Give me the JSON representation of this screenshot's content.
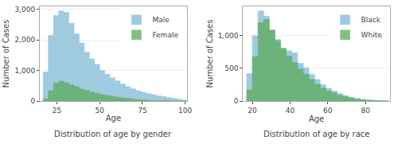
{
  "chart_data": [
    {
      "type": "histogram",
      "title": "Distribution of age by gender",
      "xlabel": "Age",
      "ylabel": "Number of Cases",
      "bins": [
        17,
        20,
        23,
        26,
        29,
        32,
        35,
        38,
        41,
        44,
        47,
        50,
        53,
        56,
        59,
        62,
        65,
        68,
        71,
        74,
        77,
        80,
        83,
        86,
        89,
        92,
        95,
        98,
        101
      ],
      "series": [
        {
          "name": "Male",
          "color": "#7fb9d5",
          "values": [
            950,
            2150,
            2800,
            2950,
            2900,
            2550,
            2200,
            1900,
            1600,
            1380,
            1200,
            1000,
            880,
            760,
            660,
            560,
            470,
            400,
            340,
            290,
            250,
            210,
            175,
            145,
            115,
            85,
            60,
            35
          ]
        },
        {
          "name": "Female",
          "color": "#5aaa5a",
          "values": [
            75,
            340,
            590,
            650,
            600,
            530,
            470,
            390,
            350,
            295,
            255,
            215,
            185,
            155,
            130,
            105,
            85,
            65,
            50,
            38,
            28,
            18,
            13,
            9,
            6,
            4,
            2,
            1
          ]
        }
      ],
      "xlim": [
        15,
        101
      ],
      "ylim": [
        0,
        3100
      ],
      "xticks": [
        25,
        50,
        75,
        100
      ],
      "yticks": [
        0,
        {
          "value": 1000,
          "label": "1,000"
        },
        {
          "value": 2000,
          "label": "2,000"
        },
        {
          "value": 3000,
          "label": "3,000"
        }
      ],
      "grid": true,
      "legend": "upper right"
    },
    {
      "type": "histogram",
      "title": "Distribution of age by race",
      "xlabel": "Age",
      "ylabel": "Number of Cases",
      "bins": [
        17,
        20,
        23,
        26,
        29,
        32,
        35,
        38,
        41,
        44,
        47,
        50,
        53,
        56,
        59,
        62,
        65,
        68,
        71,
        74,
        77,
        80,
        83,
        86,
        89,
        92
      ],
      "series": [
        {
          "name": "Black",
          "color": "#7fb9d5",
          "values": [
            420,
            1000,
            1380,
            1300,
            1080,
            900,
            790,
            770,
            740,
            580,
            510,
            410,
            330,
            250,
            195,
            155,
            115,
            85,
            58,
            38,
            28,
            18,
            12,
            8,
            4
          ]
        },
        {
          "name": "White",
          "color": "#5aaa5a",
          "values": [
            170,
            680,
            1200,
            1250,
            1090,
            940,
            810,
            690,
            590,
            490,
            410,
            330,
            260,
            200,
            155,
            125,
            90,
            65,
            47,
            32,
            22,
            13,
            9,
            6,
            2
          ]
        }
      ],
      "xlim": [
        15,
        93
      ],
      "ylim": [
        0,
        1450
      ],
      "xticks": [
        20,
        40,
        60,
        80
      ],
      "yticks": [
        0,
        500,
        {
          "value": 1000,
          "label": "1,000"
        }
      ],
      "grid": true,
      "legend": "upper right"
    }
  ]
}
